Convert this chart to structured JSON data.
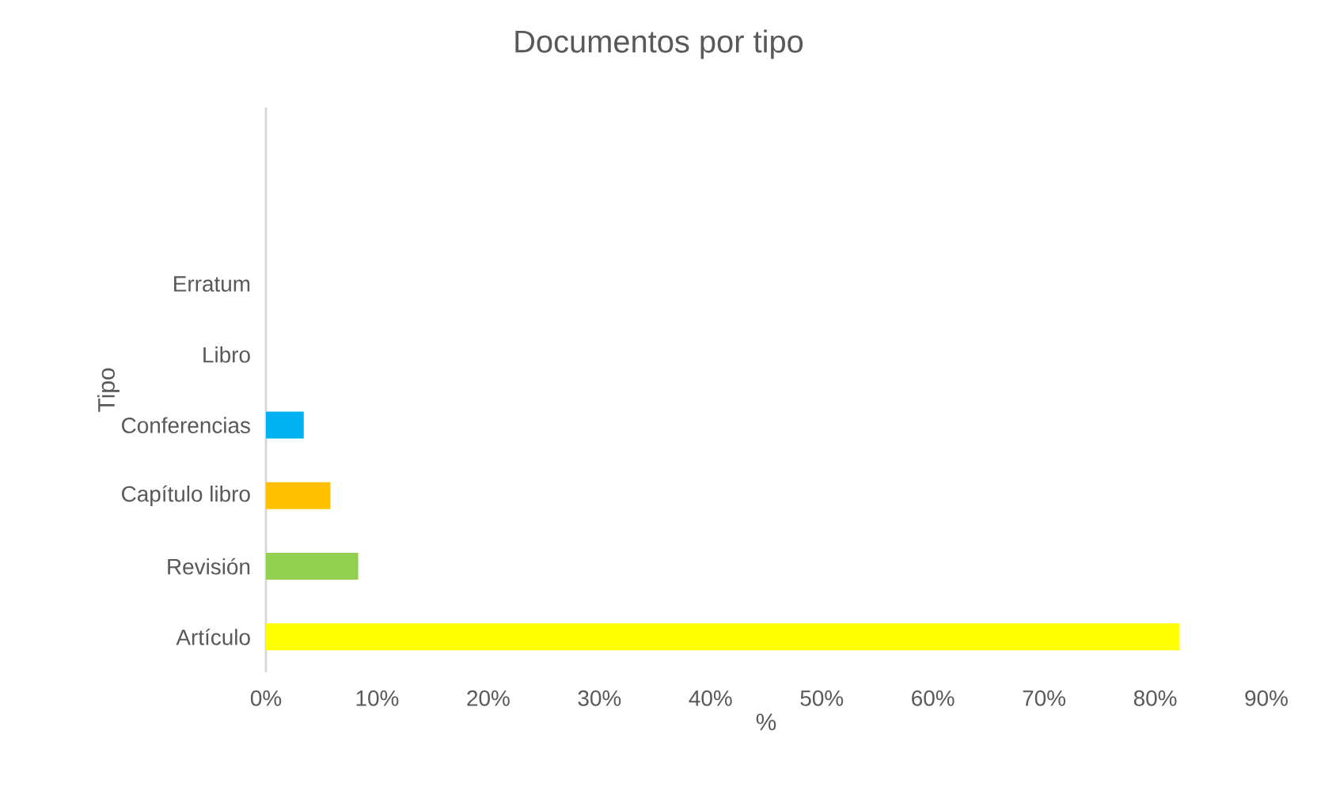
{
  "chart_data": {
    "type": "bar",
    "orientation": "horizontal",
    "title": "Documentos por tipo",
    "xlabel": "%",
    "ylabel": "Tipo",
    "categories": [
      null,
      null,
      "Erratum",
      "Libro",
      "Conferencias",
      "Capítulo libro",
      "Revisión",
      "Artículo"
    ],
    "values": [
      null,
      null,
      0,
      0,
      3.4,
      5.8,
      8.3,
      82.2
    ],
    "colors": [
      "#4472c4",
      "#ed7d31",
      "#a5a5a5",
      "#5b9bd5",
      "#00b0f0",
      "#ffc000",
      "#92d050",
      "#ffff00"
    ],
    "xlim": [
      0,
      90
    ],
    "xticks": [
      {
        "value": 0,
        "label": "0%"
      },
      {
        "value": 10,
        "label": "10%"
      },
      {
        "value": 20,
        "label": "20%"
      },
      {
        "value": 30,
        "label": "30%"
      },
      {
        "value": 40,
        "label": "40%"
      },
      {
        "value": 50,
        "label": "50%"
      },
      {
        "value": 60,
        "label": "60%"
      },
      {
        "value": 70,
        "label": "70%"
      },
      {
        "value": 80,
        "label": "80%"
      },
      {
        "value": 90,
        "label": "90%"
      }
    ],
    "grid": false
  }
}
